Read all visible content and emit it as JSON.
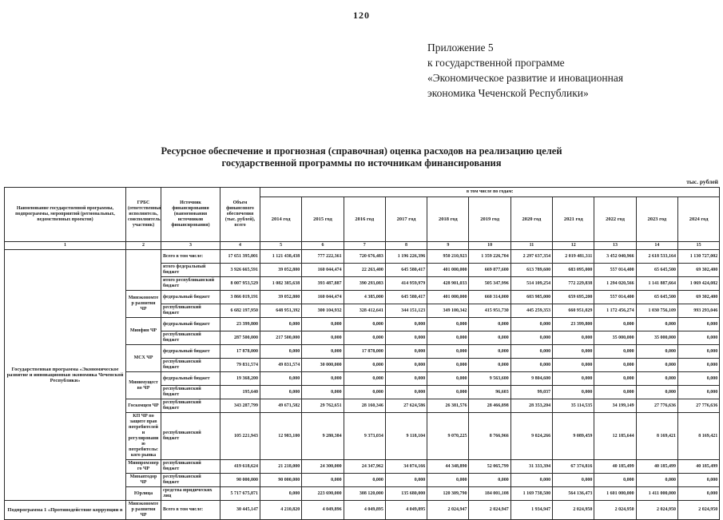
{
  "page": {
    "number": "120",
    "appendix_lines": [
      "Приложение 5",
      "к государственной программе",
      "«Экономическое развитие и иновационная",
      "экономика Чеченской Республики»"
    ],
    "title_line1": "Ресурсное обеспечение и прогнозная (справочная) оценка расходов на реализацию целей",
    "title_line2": "государственной программы по источникам финансирования",
    "units_note": "тыс. рублей"
  },
  "table": {
    "headers": {
      "col1": "Наименование государственной программы, подпрограммы, мероприятий (региональных, ведомственных проектов)",
      "col2": "ГРБС (ответственный исполнитель, соисполнитель, участник)",
      "col3": "Источник финансирования (наименования источников финансирования)",
      "col4": "Объем финансового обеспечения (тыс. рублей), всего",
      "years_group": "в том числе по годам:",
      "years": [
        "2014 год",
        "2015 год",
        "2016 год",
        "2017 год",
        "2018 год",
        "2019 год",
        "2020 год",
        "2021 год",
        "2022 год",
        "2023 год",
        "2024 год"
      ],
      "numbering": [
        "1",
        "2",
        "3",
        "4",
        "5",
        "6",
        "7",
        "8",
        "9",
        "10",
        "11",
        "12",
        "13",
        "14",
        "15"
      ]
    },
    "rows": [
      {
        "name_cell": {
          "text": "Государственная программа «Экономическое развитие и инновационная экономика Чеченской Республики»",
          "rowspan": 16
        },
        "grbs_cell": {
          "text": "",
          "rowspan": 3
        },
        "source": "Всего в том числе:",
        "values": [
          "17 651 395,001",
          "1 121 438,438",
          "777 222,361",
          "720 676,483",
          "1 196 226,396",
          "950 210,923",
          "1 359 226,704",
          "2 297 637,354",
          "2 019 481,311",
          "3 452 040,966",
          "2 618 533,164",
          "1 130 727,002"
        ]
      },
      {
        "source": "итого федеральный бюджет",
        "values": [
          "3 926 665,591",
          "39 052,800",
          "160 044,474",
          "22 263,400",
          "645 580,417",
          "401 000,000",
          "669 877,600",
          "613 789,600",
          "683 095,000",
          "557 014,400",
          "65 645,500",
          "69 302,400"
        ]
      },
      {
        "source": "итого республиканский бюджет",
        "values": [
          "8 007 953,529",
          "1 082 385,638",
          "393 487,887",
          "390 293,083",
          "414 959,979",
          "428 901,033",
          "505 347,996",
          "514 109,254",
          "772 229,838",
          "1 294 020,566",
          "1 141 887,664",
          "1 069 424,082"
        ]
      },
      {
        "grbs_cell": {
          "text": "Минэкономтер развития ЧР",
          "rowspan": 2
        },
        "source": "федеральный бюджет",
        "values": [
          "3 866 019,191",
          "39 052,800",
          "160 044,474",
          "4 385,000",
          "645 580,417",
          "401 000,000",
          "660 314,000",
          "603 985,000",
          "659 695,200",
          "557 014,400",
          "65 645,500",
          "69 302,400"
        ]
      },
      {
        "source": "республиканский бюджет",
        "values": [
          "6 682 197,950",
          "648 951,392",
          "300 104,932",
          "328 412,641",
          "344 151,123",
          "349 100,342",
          "415 951,730",
          "445 259,353",
          "660 951,029",
          "1 172 456,274",
          "1 030 756,109",
          "993 293,046"
        ]
      },
      {
        "grbs_cell": {
          "text": "Минфин ЧР",
          "rowspan": 2
        },
        "source": "федеральный бюджет",
        "values": [
          "23 399,800",
          "0,000",
          "0,000",
          "0,000",
          "0,000",
          "0,000",
          "0,000",
          "0,000",
          "23 399,800",
          "0,000",
          "0,000",
          "0,000"
        ]
      },
      {
        "source": "республиканский бюджет",
        "values": [
          "287 500,000",
          "217 500,000",
          "0,000",
          "0,000",
          "0,000",
          "0,000",
          "0,000",
          "0,000",
          "0,000",
          "35 000,000",
          "35 000,000",
          "0,000"
        ]
      },
      {
        "grbs_cell": {
          "text": "МСХ ЧР",
          "rowspan": 2
        },
        "source": "федеральный бюджет",
        "values": [
          "17 878,000",
          "0,000",
          "0,000",
          "17 878,000",
          "0,000",
          "0,000",
          "0,000",
          "0,000",
          "0,000",
          "0,000",
          "0,000",
          "0,000"
        ]
      },
      {
        "source": "республиканский бюджет",
        "values": [
          "79 831,574",
          "49 831,574",
          "30 000,000",
          "0,000",
          "0,000",
          "0,000",
          "0,000",
          "0,000",
          "0,000",
          "0,000",
          "0,000",
          "0,000"
        ]
      },
      {
        "grbs_cell": {
          "text": "Минимущество ЧР",
          "rowspan": 2
        },
        "source": "федеральный бюджет",
        "values": [
          "19 368,200",
          "0,000",
          "0,000",
          "0,000",
          "0,000",
          "0,000",
          "9 563,600",
          "9 804,600",
          "0,000",
          "0,000",
          "0,000",
          "0,000"
        ]
      },
      {
        "source": "республиканский бюджет",
        "values": [
          "195,640",
          "0,000",
          "0,000",
          "0,000",
          "0,000",
          "0,000",
          "96,603",
          "99,037",
          "0,000",
          "0,000",
          "0,000",
          "0,000"
        ]
      },
      {
        "grbs_cell": {
          "text": "Госкомцен ЧР",
          "rowspan": 1
        },
        "source": "республиканский бюджет",
        "values": [
          "343 287,799",
          "49 671,582",
          "29 762,651",
          "28 160,346",
          "27 624,586",
          "26 381,576",
          "28 466,898",
          "28 353,204",
          "35 114,535",
          "34 199,149",
          "27 776,636",
          "27 776,636"
        ]
      },
      {
        "grbs_cell": {
          "text": "КП ЧР по защите прав потребителей и регулированию потребительского рынка",
          "rowspan": 1
        },
        "source": "республиканский бюджет",
        "tall": true,
        "values": [
          "105 221,943",
          "12 983,100",
          "9 280,384",
          "9 373,034",
          "9 118,104",
          "9 070,225",
          "8 766,966",
          "9 024,266",
          "9 089,459",
          "12 185,644",
          "8 169,421",
          "8 169,421"
        ]
      },
      {
        "grbs_cell": {
          "text": "Минпромэнерго ЧР",
          "rowspan": 1
        },
        "source": "республиканский бюджет",
        "values": [
          "419 618,624",
          "21 218,000",
          "24 300,000",
          "24 347,962",
          "34 074,166",
          "44 348,890",
          "52 065,799",
          "31 333,394",
          "67 374,816",
          "40 185,499",
          "40 185,499",
          "40 185,499"
        ]
      },
      {
        "grbs_cell": {
          "text": "Минавтодор ЧР",
          "rowspan": 1
        },
        "source": "республиканский бюджет",
        "values": [
          "90 000,000",
          "90 000,000",
          "0,000",
          "0,000",
          "0,000",
          "0,000",
          "0,000",
          "0,000",
          "0,000",
          "0,000",
          "0,000",
          "0,000"
        ]
      },
      {
        "grbs_cell": {
          "text": "Юрлица",
          "rowspan": 1
        },
        "source": "средства юридических лиц",
        "values": [
          "5 717 675,871",
          "0,000",
          "223 690,000",
          "308 120,000",
          "135 680,000",
          "120 309,790",
          "184 001,108",
          "1 169 738,500",
          "564 136,473",
          "1 601 000,000",
          "1 411 000,000",
          "0,000"
        ]
      },
      {
        "name_cell": {
          "text": "Подпрограмма 1 «Противодействие коррупции в",
          "rowspan": 1
        },
        "grbs_cell": {
          "text": "Минэкономтер развития ЧР",
          "rowspan": 1
        },
        "source": "Всего в том числе:",
        "values": [
          "30 445,147",
          "4 210,820",
          "4 049,896",
          "4 049,895",
          "4 049,895",
          "2 024,947",
          "2 024,947",
          "1 934,947",
          "2 024,950",
          "2 024,950",
          "2 024,950",
          "2 024,950"
        ]
      }
    ]
  }
}
